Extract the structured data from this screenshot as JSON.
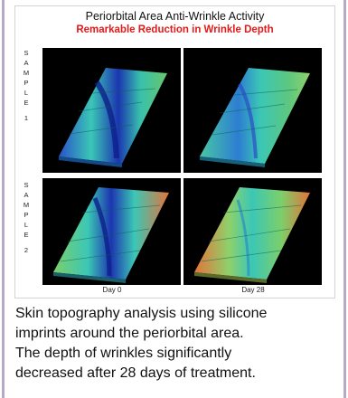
{
  "figure": {
    "title": "Periorbital Area Anti-Wrinkle Activity",
    "subtitle": "Remarkable Reduction in Wrinkle Depth",
    "subtitle_color": "#e11a1a",
    "samples": [
      {
        "label_letters": [
          "S",
          "A",
          "M",
          "P",
          "L",
          "E"
        ],
        "number": "1"
      },
      {
        "label_letters": [
          "S",
          "A",
          "M",
          "P",
          "L",
          "E"
        ],
        "number": "2"
      }
    ],
    "columns": [
      "Day 0",
      "Day 28"
    ],
    "panel_background": "#000000"
  },
  "caption": {
    "lines": [
      "Skin topography analysis using silicone",
      "imprints around the periorbital area.",
      "The depth of wrinkles significantly",
      "decreased after 28 days of treatment."
    ]
  },
  "colors": {
    "frame": "#b5aac8",
    "height_low": "#1f3fbf",
    "height_mid": "#34c6b0",
    "height_high": "#e4733a"
  }
}
